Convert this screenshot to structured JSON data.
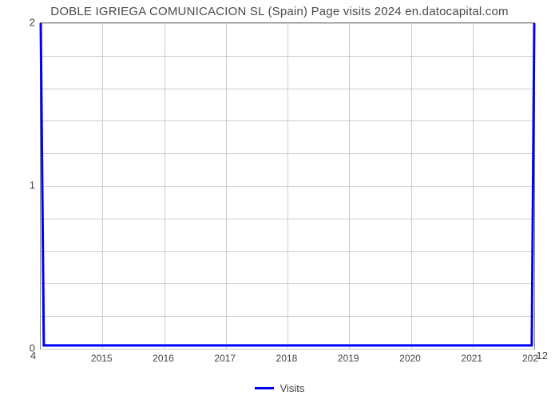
{
  "chart": {
    "type": "line",
    "title": "DOBLE IGRIEGA COMUNICACION SL (Spain) Page visits 2024 en.datocapital.com",
    "title_fontsize": 15,
    "title_color": "#4a4a4a",
    "background_color": "#ffffff",
    "plot_border_color": "#888888",
    "grid_color": "#cccccc",
    "grid": true,
    "y": {
      "lim": [
        0,
        2
      ],
      "ticks": [
        0,
        1,
        2
      ],
      "minor_tick_count_between": 4,
      "label_fontsize": 13,
      "label_color": "#444444"
    },
    "x": {
      "lim": [
        2014,
        2022
      ],
      "ticks": [
        2015,
        2016,
        2017,
        2018,
        2019,
        2020,
        2021
      ],
      "outer_left_label": "4",
      "outer_right_label": "12",
      "end_label_202": "202",
      "label_fontsize": 12,
      "label_color": "#444444"
    },
    "series": {
      "visits": {
        "label": "Visits",
        "color": "#0000ff",
        "line_width": 3,
        "data_x": [
          2014,
          2014.05,
          2014.1,
          2015,
          2016,
          2017,
          2018,
          2019,
          2020,
          2021,
          2021.9,
          2021.96,
          2022
        ],
        "data_y": [
          2.0,
          0.02,
          0.02,
          0.02,
          0.02,
          0.02,
          0.02,
          0.02,
          0.02,
          0.02,
          0.02,
          0.02,
          2.0
        ]
      }
    },
    "legend": {
      "position": "bottom-center",
      "swatch_color": "#0000ff",
      "text": "Visits",
      "fontsize": 13
    }
  }
}
